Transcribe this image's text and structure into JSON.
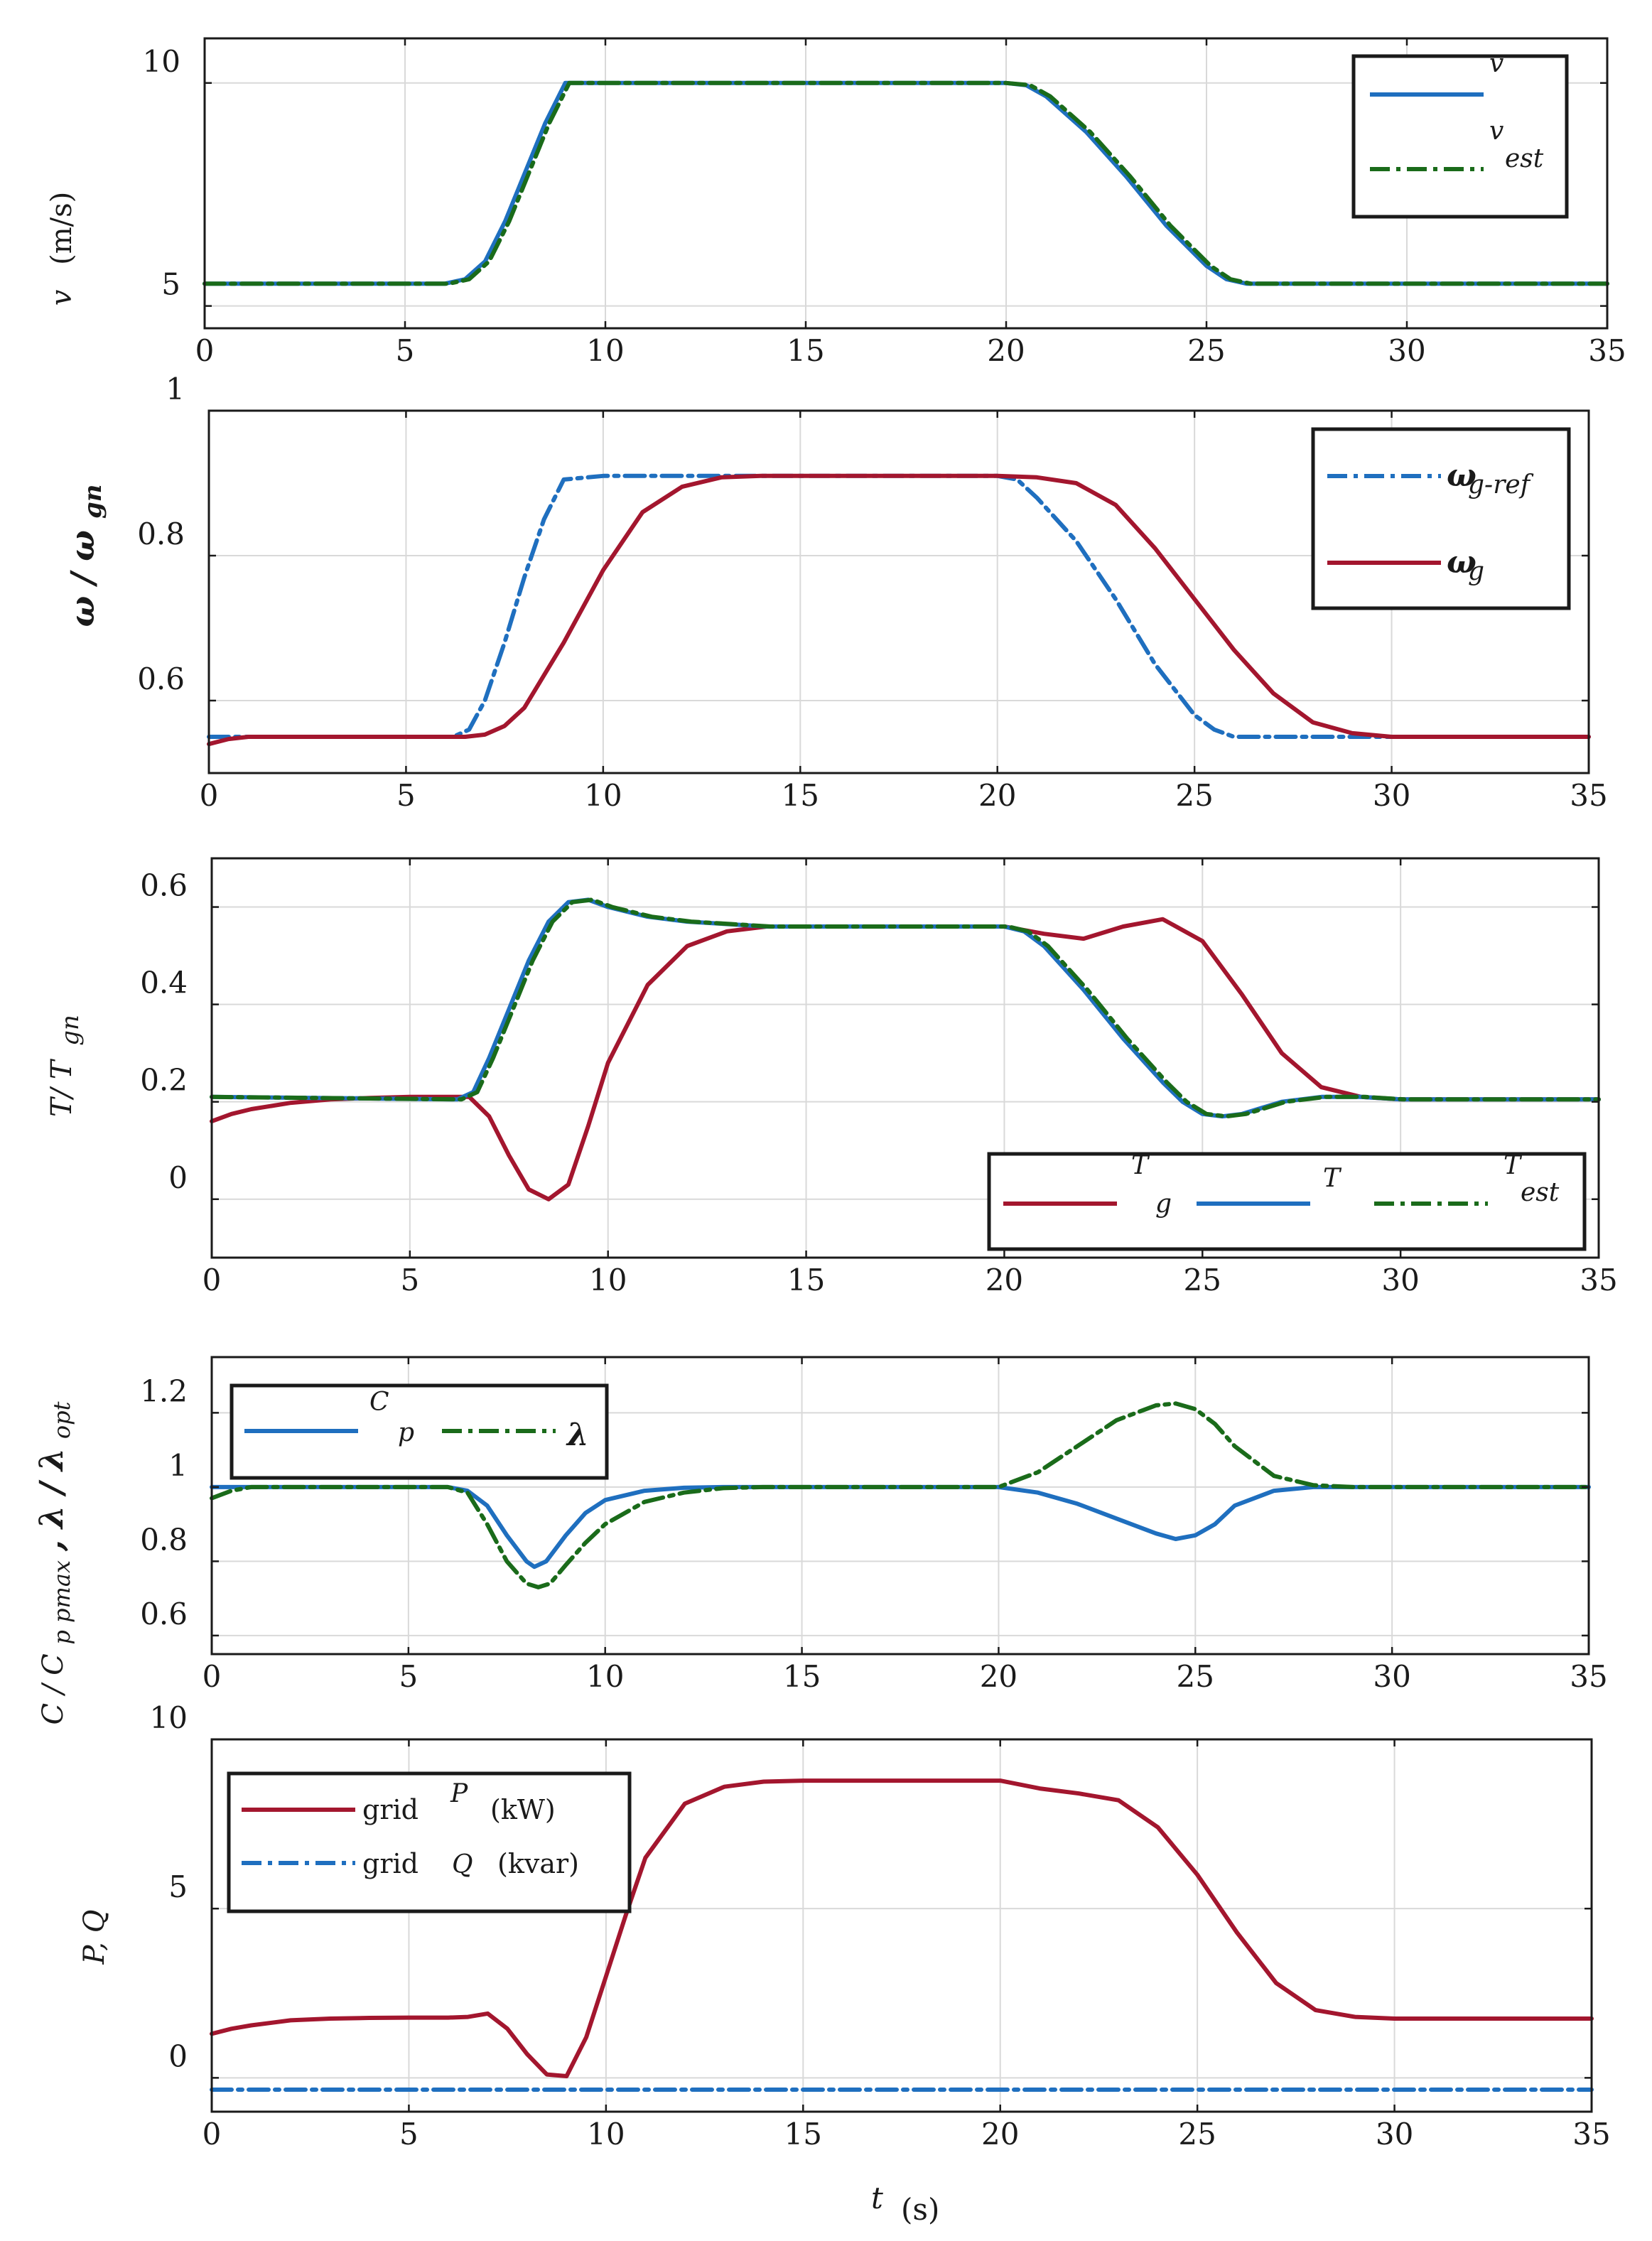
{
  "chart_data": [
    {
      "type": "line",
      "id": "wind",
      "ylabel": {
        "symbol": "v",
        "unit": "(m/s)"
      },
      "xlim": [
        0,
        35
      ],
      "ylim": [
        4.5,
        11
      ],
      "xticks": [
        "0",
        "5",
        "10",
        "15",
        "20",
        "25",
        "30",
        "35"
      ],
      "yticks": [
        {
          "v": 5,
          "label": "5"
        },
        {
          "v": 10,
          "label": "10"
        }
      ],
      "legend_position": "top-right",
      "series": [
        {
          "key": "v",
          "name": "v",
          "sub": "",
          "color": "#1f6fbf",
          "style": "solid",
          "x": [
            0,
            6,
            6.5,
            7,
            7.5,
            8,
            8.5,
            9,
            10,
            20,
            20.5,
            21,
            22,
            23,
            24,
            25,
            25.5,
            26,
            35
          ],
          "y": [
            5.5,
            5.5,
            5.6,
            6.0,
            6.9,
            8.0,
            9.1,
            10.0,
            10.0,
            10.0,
            9.95,
            9.7,
            8.9,
            7.9,
            6.8,
            5.9,
            5.6,
            5.5,
            5.5
          ]
        },
        {
          "key": "vest",
          "name": "v",
          "sub": "est",
          "color": "#1a6b1a",
          "style": "dashdot",
          "x": [
            0,
            6.1,
            6.6,
            7.1,
            7.6,
            8.1,
            8.6,
            9.1,
            10,
            20,
            20.6,
            21.1,
            22.1,
            23.1,
            24.1,
            25.1,
            25.6,
            26.1,
            35
          ],
          "y": [
            5.5,
            5.5,
            5.6,
            6.0,
            6.9,
            8.0,
            9.1,
            10.0,
            10.0,
            10.0,
            9.95,
            9.7,
            8.9,
            7.9,
            6.8,
            5.9,
            5.6,
            5.5,
            5.5
          ]
        }
      ]
    },
    {
      "type": "line",
      "id": "speed",
      "ylabel": {
        "symbol": "ω / ω",
        "sub": "gn"
      },
      "xlim": [
        0,
        35
      ],
      "ylim": [
        0.5,
        1.0
      ],
      "xticks": [
        "0",
        "5",
        "10",
        "15",
        "20",
        "25",
        "30",
        "35"
      ],
      "yticks": [
        {
          "v": 0.6,
          "label": "0.6"
        },
        {
          "v": 0.8,
          "label": "0.8"
        },
        {
          "v": 1.0,
          "label": "1"
        }
      ],
      "legend_position": "top-right",
      "series": [
        {
          "key": "wgref",
          "name": "ω",
          "sub": "g-ref",
          "color": "#1f6fbf",
          "style": "dashdot",
          "x": [
            0,
            6.2,
            6.6,
            7,
            7.5,
            8,
            8.5,
            9,
            10,
            20,
            20.5,
            21,
            22,
            23,
            24,
            25,
            25.5,
            26,
            35
          ],
          "y": [
            0.55,
            0.55,
            0.56,
            0.6,
            0.68,
            0.77,
            0.85,
            0.905,
            0.91,
            0.91,
            0.905,
            0.88,
            0.82,
            0.74,
            0.65,
            0.58,
            0.56,
            0.55,
            0.55
          ]
        },
        {
          "key": "wg",
          "name": "ω",
          "sub": "g",
          "color": "#a3162e",
          "style": "solid",
          "x": [
            0,
            0.5,
            1,
            6.5,
            7,
            7.5,
            8,
            9,
            10,
            11,
            12,
            13,
            14,
            20,
            21,
            22,
            23,
            24,
            25,
            26,
            27,
            28,
            29,
            30,
            35
          ],
          "y": [
            0.54,
            0.547,
            0.55,
            0.55,
            0.553,
            0.565,
            0.59,
            0.68,
            0.78,
            0.86,
            0.895,
            0.908,
            0.91,
            0.91,
            0.908,
            0.9,
            0.87,
            0.81,
            0.74,
            0.67,
            0.61,
            0.57,
            0.555,
            0.55,
            0.55
          ]
        }
      ]
    },
    {
      "type": "line",
      "id": "torque",
      "ylabel": {
        "symbol": "T/ T",
        "sub": "gn"
      },
      "xlim": [
        0,
        35
      ],
      "ylim": [
        -0.12,
        0.7
      ],
      "xticks": [
        "0",
        "5",
        "10",
        "15",
        "20",
        "25",
        "30",
        "35"
      ],
      "yticks": [
        {
          "v": 0.0,
          "label": "0"
        },
        {
          "v": 0.2,
          "label": "0.2"
        },
        {
          "v": 0.4,
          "label": "0.4"
        },
        {
          "v": 0.6,
          "label": "0.6"
        }
      ],
      "legend_position": "bottom-right",
      "series": [
        {
          "key": "tg",
          "name": "T",
          "sub": "g",
          "color": "#a3162e",
          "style": "solid",
          "x": [
            0,
            0.5,
            1,
            2,
            3,
            4,
            5,
            6,
            6.5,
            7,
            7.5,
            8,
            8.5,
            9,
            9.5,
            10,
            11,
            12,
            13,
            14,
            15,
            20,
            21,
            22,
            23,
            24,
            25,
            26,
            27,
            28,
            29,
            30,
            35
          ],
          "y": [
            0.16,
            0.175,
            0.185,
            0.198,
            0.205,
            0.208,
            0.21,
            0.21,
            0.21,
            0.17,
            0.09,
            0.02,
            0.0,
            0.03,
            0.15,
            0.28,
            0.44,
            0.52,
            0.55,
            0.56,
            0.56,
            0.56,
            0.545,
            0.535,
            0.56,
            0.575,
            0.53,
            0.42,
            0.3,
            0.23,
            0.21,
            0.205,
            0.205
          ]
        },
        {
          "key": "t",
          "name": "T",
          "sub": "",
          "color": "#1f6fbf",
          "style": "solid",
          "x": [
            0,
            6.2,
            6.6,
            7,
            7.5,
            8,
            8.5,
            9,
            9.5,
            10,
            11,
            12,
            13,
            14,
            20,
            20.5,
            21,
            22,
            23,
            24,
            24.5,
            25,
            25.5,
            26,
            27,
            28,
            29,
            30,
            35
          ],
          "y": [
            0.21,
            0.205,
            0.22,
            0.29,
            0.39,
            0.49,
            0.57,
            0.61,
            0.615,
            0.6,
            0.58,
            0.57,
            0.565,
            0.56,
            0.56,
            0.55,
            0.52,
            0.43,
            0.33,
            0.24,
            0.2,
            0.175,
            0.17,
            0.175,
            0.2,
            0.21,
            0.21,
            0.205,
            0.205
          ]
        },
        {
          "key": "test",
          "name": "T",
          "sub": "est",
          "color": "#1a6b1a",
          "style": "dashdot",
          "x": [
            0,
            6.3,
            6.7,
            7.1,
            7.6,
            8.1,
            8.6,
            9.1,
            9.6,
            10.1,
            11.1,
            12.1,
            13.1,
            14.1,
            20.1,
            20.6,
            21.1,
            22.1,
            23.1,
            24.1,
            24.6,
            25.1,
            25.6,
            26.1,
            27.1,
            28.1,
            29.1,
            30.1,
            35
          ],
          "y": [
            0.21,
            0.205,
            0.22,
            0.29,
            0.39,
            0.49,
            0.57,
            0.61,
            0.615,
            0.6,
            0.58,
            0.57,
            0.565,
            0.56,
            0.56,
            0.55,
            0.52,
            0.43,
            0.33,
            0.24,
            0.2,
            0.175,
            0.17,
            0.175,
            0.2,
            0.21,
            0.21,
            0.205,
            0.205
          ]
        }
      ]
    },
    {
      "type": "line",
      "id": "cp",
      "ylabel": {
        "symbol": "C / C",
        "sub": "p pmax",
        "extra": ", λ / λ",
        "extra_sub": "opt"
      },
      "xlim": [
        0,
        35
      ],
      "ylim": [
        0.55,
        1.35
      ],
      "xticks": [
        "0",
        "5",
        "10",
        "15",
        "20",
        "25",
        "30",
        "35"
      ],
      "yticks": [
        {
          "v": 0.6,
          "label": "0.6"
        },
        {
          "v": 0.8,
          "label": "0.8"
        },
        {
          "v": 1.0,
          "label": "1"
        },
        {
          "v": 1.2,
          "label": "1.2"
        }
      ],
      "legend_position": "top-left",
      "series": [
        {
          "key": "cpn",
          "name": "C",
          "sub": "p",
          "color": "#1f6fbf",
          "style": "solid",
          "x": [
            0,
            6,
            6.5,
            7,
            7.5,
            8,
            8.2,
            8.5,
            9,
            9.5,
            10,
            11,
            12,
            13,
            14,
            20,
            21,
            22,
            23,
            24,
            24.5,
            25,
            25.5,
            26,
            27,
            28,
            35
          ],
          "y": [
            1.0,
            1.0,
            0.99,
            0.95,
            0.87,
            0.8,
            0.785,
            0.8,
            0.87,
            0.93,
            0.965,
            0.99,
            0.998,
            1.0,
            1.0,
            1.0,
            0.985,
            0.955,
            0.915,
            0.875,
            0.86,
            0.87,
            0.9,
            0.95,
            0.99,
            1.0,
            1.0
          ]
        },
        {
          "key": "lambda",
          "name": "λ",
          "sub": "",
          "color": "#1a6b1a",
          "style": "dashdot",
          "x": [
            0,
            0.5,
            1,
            6,
            6.5,
            7,
            7.5,
            8,
            8.3,
            8.6,
            9,
            9.5,
            10,
            11,
            12,
            13,
            14,
            20,
            21,
            22,
            23,
            24,
            24.5,
            25,
            25.5,
            26,
            27,
            28,
            29,
            35
          ],
          "y": [
            0.97,
            0.99,
            1.0,
            1.0,
            0.985,
            0.9,
            0.8,
            0.74,
            0.73,
            0.74,
            0.79,
            0.85,
            0.9,
            0.96,
            0.985,
            0.997,
            1.0,
            1.0,
            1.04,
            1.11,
            1.18,
            1.22,
            1.225,
            1.21,
            1.17,
            1.11,
            1.03,
            1.005,
            1.0,
            1.0
          ]
        }
      ]
    },
    {
      "type": "line",
      "id": "power",
      "ylabel": {
        "symbol": "P, Q"
      },
      "xlabel": {
        "symbol": "t",
        "unit": "(s)"
      },
      "xlim": [
        0,
        35
      ],
      "ylim": [
        -1,
        10
      ],
      "xticks": [
        "0",
        "5",
        "10",
        "15",
        "20",
        "25",
        "30",
        "35"
      ],
      "yticks": [
        {
          "v": 0,
          "label": "0"
        },
        {
          "v": 5,
          "label": "5"
        },
        {
          "v": 10,
          "label": "10"
        }
      ],
      "legend_position": "top-left",
      "series": [
        {
          "key": "p",
          "name": "grid",
          "sub": "P",
          "unit": "(kW)",
          "color": "#a3162e",
          "style": "solid",
          "x": [
            0,
            0.5,
            1,
            2,
            3,
            4,
            5,
            6,
            6.5,
            7,
            7.5,
            8,
            8.5,
            9,
            9.5,
            10,
            10.5,
            11,
            12,
            13,
            14,
            15,
            20,
            21,
            22,
            23,
            24,
            25,
            26,
            27,
            28,
            29,
            30,
            35
          ],
          "y": [
            1.3,
            1.45,
            1.55,
            1.7,
            1.75,
            1.77,
            1.78,
            1.78,
            1.8,
            1.9,
            1.45,
            0.7,
            0.1,
            0.05,
            1.2,
            3.0,
            4.8,
            6.5,
            8.1,
            8.6,
            8.75,
            8.78,
            8.78,
            8.55,
            8.4,
            8.2,
            7.4,
            6.0,
            4.3,
            2.8,
            2.0,
            1.8,
            1.75,
            1.75
          ]
        },
        {
          "key": "q",
          "name": "grid",
          "sub": "Q",
          "unit": "(kvar)",
          "color": "#1f6fbf",
          "style": "dashdot",
          "x": [
            0,
            35
          ],
          "y": [
            -0.35,
            -0.35
          ]
        }
      ]
    }
  ]
}
